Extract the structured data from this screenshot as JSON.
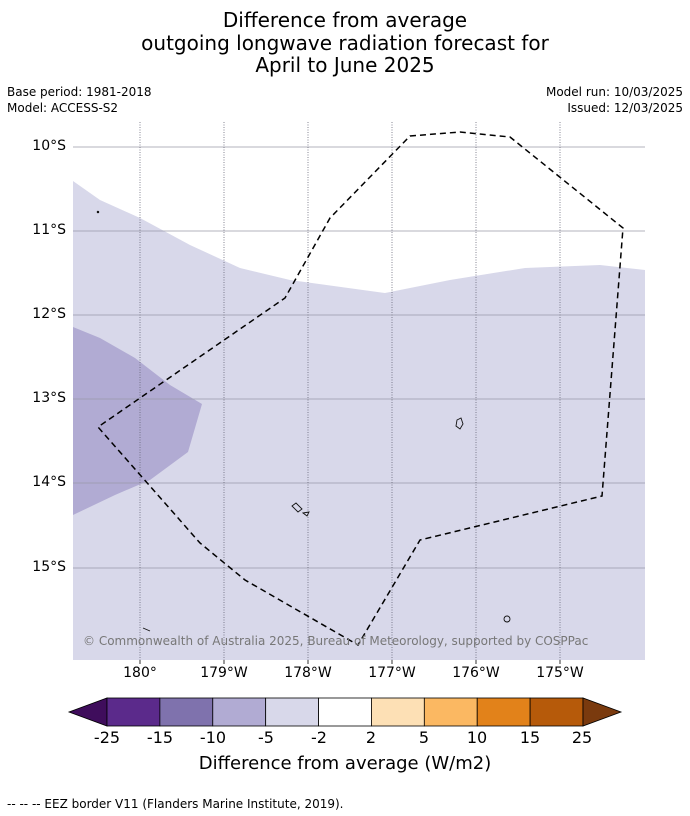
{
  "title_lines": [
    "Difference from average",
    "outgoing longwave radiation forecast for",
    "April to June 2025"
  ],
  "base_period": "Base period: 1981-2018",
  "model": "Model: ACCESS-S2",
  "model_run": "Model run: 10/03/2025",
  "issued": "Issued: 12/03/2025",
  "copyright": "© Commonwealth of Australia 2025, Bureau of Meteorology, supported by COSPPac",
  "lat_labels": [
    "10°S",
    "11°S",
    "12°S",
    "13°S",
    "14°S",
    "15°S"
  ],
  "lon_labels": [
    "180°",
    "179°W",
    "178°W",
    "177°W",
    "176°W",
    "175°W"
  ],
  "colorbar": {
    "ticks": [
      "-25",
      "-15",
      "-10",
      "-5",
      "-2",
      "2",
      "5",
      "10",
      "15",
      "25"
    ],
    "colors": [
      "#3f0d5c",
      "#5b2a8b",
      "#7f72ad",
      "#b1abd3",
      "#d8d8ea",
      "#ffffff",
      "#fde0b5",
      "#fbb862",
      "#e2821a",
      "#b65a0a",
      "#7a3a0e"
    ],
    "label": "Difference from average (W/m2)"
  },
  "legend_note": "--  --  -- EEZ border V11 (Flanders Marine Institute, 2019)."
}
